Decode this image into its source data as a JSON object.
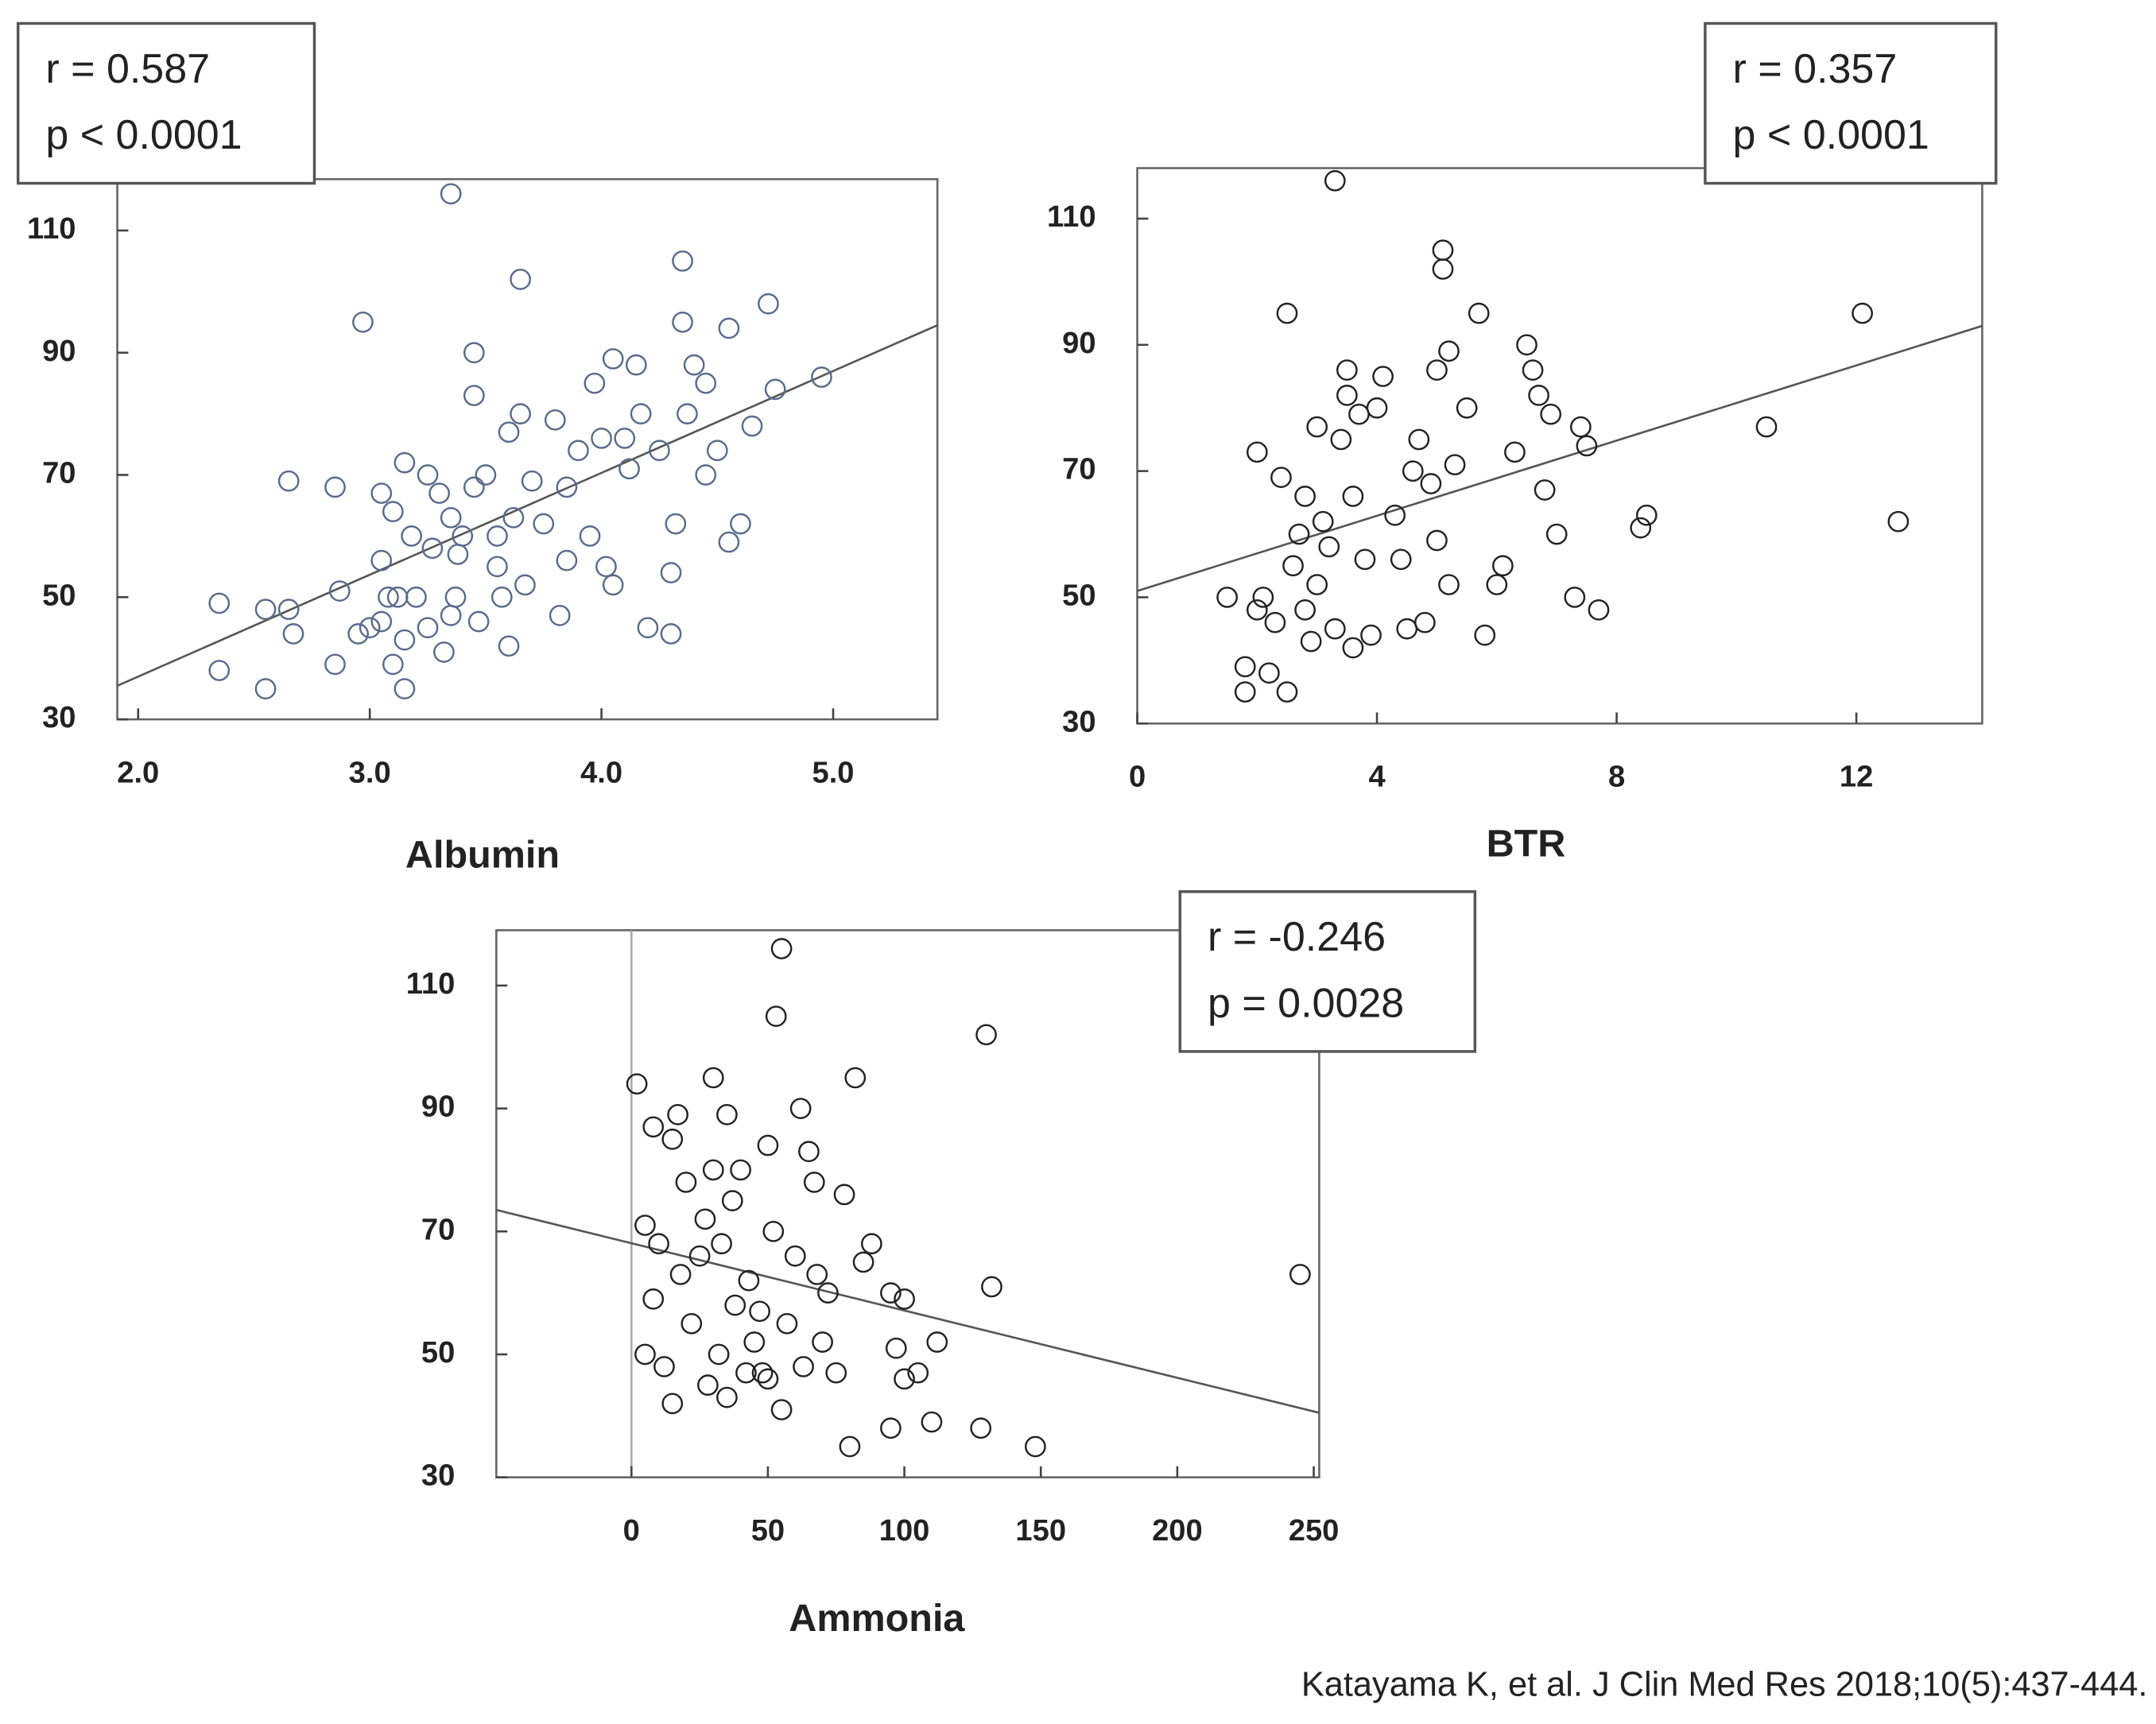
{
  "chart_data": [
    {
      "type": "scatter",
      "x_label": "Albumin",
      "color": "#5a6a8a",
      "annotations": [
        "r = 0.587",
        "p < 0.0001"
      ],
      "xlim": [
        1.91,
        5.45
      ],
      "ylim": [
        30,
        118.4
      ],
      "xticks": [
        {
          "value": 2,
          "label": "2.0"
        },
        {
          "value": 3,
          "label": "3.0"
        },
        {
          "value": 4,
          "label": "4.0"
        },
        {
          "value": 5,
          "label": "5.0"
        }
      ],
      "yticks": [
        30,
        50,
        70,
        90,
        110
      ],
      "trend_line": {
        "x": [
          1.91,
          5.45
        ],
        "y": [
          35.5,
          94.5
        ]
      },
      "x": [
        2.35,
        2.35,
        2.55,
        2.55,
        2.65,
        2.65,
        2.67,
        2.85,
        2.85,
        2.87,
        2.95,
        2.97,
        3.0,
        3.05,
        3.05,
        3.05,
        3.08,
        3.1,
        3.1,
        3.12,
        3.15,
        3.15,
        3.15,
        3.18,
        3.2,
        3.25,
        3.25,
        3.27,
        3.3,
        3.32,
        3.35,
        3.35,
        3.35,
        3.37,
        3.38,
        3.4,
        3.45,
        3.45,
        3.45,
        3.47,
        3.5,
        3.55,
        3.55,
        3.57,
        3.6,
        3.6,
        3.62,
        3.65,
        3.65,
        3.67,
        3.7,
        3.75,
        3.8,
        3.82,
        3.85,
        3.85,
        3.9,
        3.95,
        3.97,
        4.0,
        4.02,
        4.05,
        4.05,
        4.1,
        4.12,
        4.15,
        4.17,
        4.2,
        4.25,
        4.3,
        4.3,
        4.32,
        4.35,
        4.35,
        4.37,
        4.4,
        4.45,
        4.45,
        4.5,
        4.55,
        4.55,
        4.6,
        4.65,
        4.72,
        4.75,
        4.95
      ],
      "y": [
        49,
        38,
        35,
        48,
        48,
        69,
        44,
        68,
        39,
        51,
        44,
        95,
        45,
        46,
        56,
        67,
        50,
        39,
        64,
        50,
        35,
        43,
        72,
        60,
        50,
        70,
        45,
        58,
        67,
        41,
        47,
        63,
        116,
        50,
        57,
        60,
        90,
        83,
        68,
        46,
        70,
        55,
        60,
        50,
        42,
        77,
        63,
        102,
        80,
        52,
        69,
        62,
        79,
        47,
        56,
        68,
        74,
        60,
        85,
        76,
        55,
        52,
        89,
        76,
        71,
        88,
        80,
        45,
        74,
        44,
        54,
        62,
        105,
        95,
        80,
        88,
        70,
        85,
        74,
        94,
        59,
        62,
        78,
        98,
        84,
        86
      ]
    },
    {
      "type": "scatter",
      "x_label": "BTR",
      "color": "#222222",
      "annotations": [
        "r = 0.357",
        "p < 0.0001"
      ],
      "xlim": [
        0,
        14.1
      ],
      "ylim": [
        30,
        118
      ],
      "xticks": [
        0,
        4,
        8,
        12
      ],
      "yticks": [
        30,
        50,
        70,
        90,
        110
      ],
      "trend_line": {
        "x": [
          0,
          14.1
        ],
        "y": [
          51,
          93
        ]
      },
      "x": [
        1.5,
        1.8,
        1.8,
        2.0,
        2.0,
        2.1,
        2.2,
        2.3,
        2.4,
        2.5,
        2.5,
        2.6,
        2.7,
        2.8,
        2.8,
        2.9,
        3.0,
        3.0,
        3.1,
        3.2,
        3.3,
        3.3,
        3.4,
        3.5,
        3.5,
        3.6,
        3.6,
        3.7,
        3.8,
        3.9,
        4.0,
        4.1,
        4.3,
        4.4,
        4.5,
        4.6,
        4.7,
        4.8,
        4.9,
        5.0,
        5.0,
        5.1,
        5.1,
        5.2,
        5.2,
        5.3,
        5.5,
        5.7,
        5.8,
        6.0,
        6.1,
        6.3,
        6.5,
        6.6,
        6.7,
        6.8,
        6.9,
        7.0,
        7.3,
        7.4,
        7.5,
        7.7,
        8.4,
        8.5,
        10.5,
        12.1,
        12.7
      ],
      "y": [
        50,
        35,
        39,
        48,
        73,
        50,
        38,
        46,
        69,
        95,
        35,
        55,
        60,
        48,
        66,
        43,
        52,
        77,
        62,
        58,
        116,
        45,
        75,
        82,
        86,
        42,
        66,
        79,
        56,
        44,
        80,
        85,
        63,
        56,
        45,
        70,
        75,
        46,
        68,
        86,
        59,
        105,
        102,
        89,
        52,
        71,
        80,
        95,
        44,
        52,
        55,
        73,
        90,
        86,
        82,
        67,
        79,
        60,
        50,
        77,
        74,
        48,
        61,
        63,
        77,
        95,
        62
      ]
    },
    {
      "type": "scatter",
      "x_label": "Ammonia",
      "color": "#222222",
      "annotations": [
        "r = -0.246",
        "p = 0.0028"
      ],
      "xlim": [
        -49.5,
        252
      ],
      "ylim": [
        30,
        119
      ],
      "xticks": [
        0,
        50,
        100,
        150,
        200,
        250
      ],
      "yticks": [
        30,
        50,
        70,
        90,
        110
      ],
      "trend_line": {
        "x": [
          -49.5,
          252
        ],
        "y": [
          73.5,
          40.5
        ]
      },
      "x": [
        2,
        5,
        5,
        8,
        8,
        10,
        12,
        15,
        15,
        17,
        18,
        20,
        22,
        25,
        27,
        28,
        30,
        30,
        32,
        33,
        35,
        35,
        37,
        38,
        40,
        42,
        43,
        45,
        47,
        48,
        50,
        50,
        52,
        53,
        55,
        55,
        57,
        60,
        62,
        63,
        65,
        67,
        68,
        70,
        72,
        75,
        78,
        80,
        82,
        85,
        88,
        95,
        95,
        97,
        100,
        100,
        105,
        110,
        112,
        128,
        130,
        132,
        148,
        245
      ],
      "y": [
        94,
        50,
        71,
        87,
        59,
        68,
        48,
        85,
        42,
        89,
        63,
        78,
        55,
        66,
        72,
        45,
        80,
        95,
        50,
        68,
        43,
        89,
        75,
        58,
        80,
        47,
        62,
        52,
        57,
        47,
        84,
        46,
        70,
        105,
        116,
        41,
        55,
        66,
        90,
        48,
        83,
        78,
        63,
        52,
        60,
        47,
        76,
        35,
        95,
        65,
        68,
        60,
        38,
        51,
        46,
        59,
        47,
        39,
        52,
        38,
        102,
        61,
        35,
        63
      ]
    }
  ],
  "footer": "Katayama K, et al. J Clin Med Res 2018;10(5):437-444."
}
